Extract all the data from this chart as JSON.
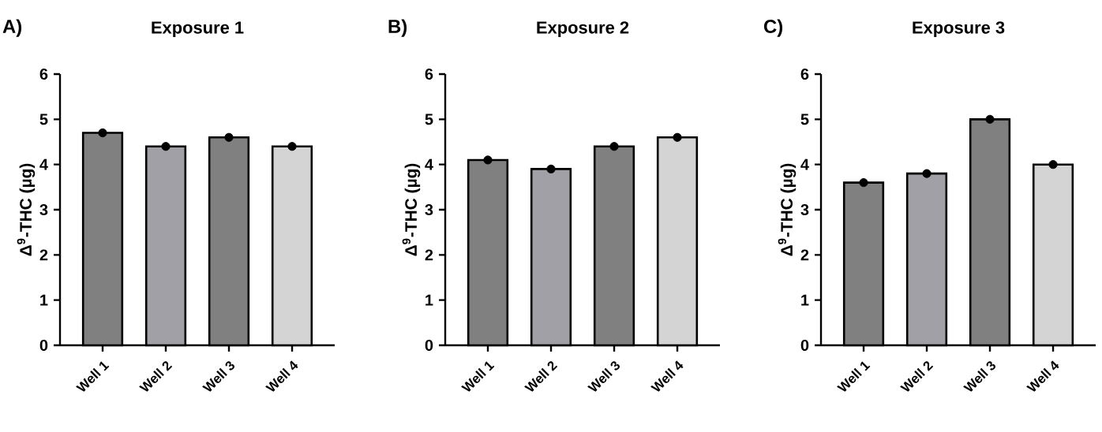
{
  "chart_data": [
    {
      "type": "bar",
      "title": "Exposure 1",
      "annotations": [
        "A)"
      ],
      "ylabel": "Δ$^{9}$-THC (µg)",
      "categories": [
        "Well 1",
        "Well 2",
        "Well 3",
        "Well 4"
      ],
      "ylim": [
        0,
        6
      ],
      "yticks": [
        0,
        1,
        2,
        3,
        4,
        5,
        6
      ],
      "series": [
        {
          "type": "bar",
          "colors": [
            "#808080",
            "#a0a0a6",
            "#808080",
            "#d4d4d4"
          ],
          "values": [
            4.7,
            4.4,
            4.6,
            4.4
          ]
        },
        {
          "type": "scatter",
          "x": [
            "Well 1",
            "Well 2",
            "Well 3",
            "Well 4"
          ],
          "color": "#000000",
          "marker": "circle",
          "values": [
            4.7,
            4.4,
            4.6,
            4.4
          ]
        }
      ]
    },
    {
      "type": "bar",
      "title": "Exposure 2",
      "annotations": [
        "B)"
      ],
      "ylabel": "Δ$^{9}$-THC (µg)",
      "categories": [
        "Well 1",
        "Well 2",
        "Well 3",
        "Well 4"
      ],
      "ylim": [
        0,
        6
      ],
      "yticks": [
        0,
        1,
        2,
        3,
        4,
        5,
        6
      ],
      "series": [
        {
          "type": "bar",
          "colors": [
            "#808080",
            "#a0a0a6",
            "#808080",
            "#d4d4d4"
          ],
          "values": [
            4.1,
            3.9,
            4.4,
            4.6
          ]
        },
        {
          "type": "scatter",
          "x": [
            "Well 1",
            "Well 2",
            "Well 3",
            "Well 4"
          ],
          "color": "#000000",
          "marker": "circle",
          "values": [
            4.1,
            3.9,
            4.4,
            4.6
          ]
        }
      ]
    },
    {
      "type": "bar",
      "title": "Exposure 3",
      "annotations": [
        "C)"
      ],
      "ylabel": "Δ$^{9}$-THC (µg)",
      "categories": [
        "Well 1",
        "Well 2",
        "Well 3",
        "Well 4"
      ],
      "ylim": [
        0,
        6
      ],
      "yticks": [
        0,
        1,
        2,
        3,
        4,
        5,
        6
      ],
      "series": [
        {
          "type": "bar",
          "colors": [
            "#808080",
            "#a0a0a6",
            "#808080",
            "#d4d4d4"
          ],
          "values": [
            3.6,
            3.8,
            5.0,
            4.0
          ]
        },
        {
          "type": "scatter",
          "x": [
            "Well 1",
            "Well 2",
            "Well 3",
            "Well 4"
          ],
          "color": "#000000",
          "marker": "circle",
          "values": [
            3.6,
            3.8,
            5.0,
            4.0
          ]
        }
      ]
    }
  ]
}
